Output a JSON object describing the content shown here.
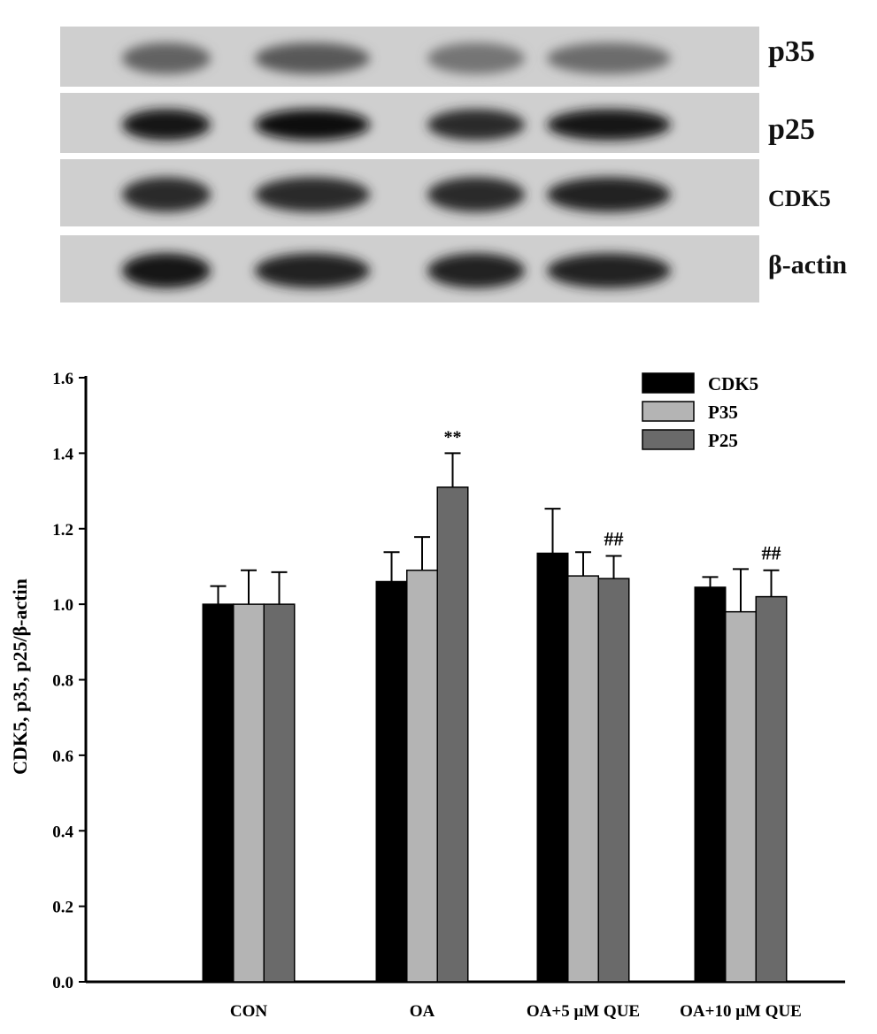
{
  "blot": {
    "rows": [
      {
        "label": "p35",
        "intensity": [
          0.55,
          0.6,
          0.45,
          0.5
        ]
      },
      {
        "label": "p25",
        "intensity": [
          0.95,
          1.0,
          0.85,
          0.95
        ]
      },
      {
        "label": "CDK5",
        "intensity": [
          0.85,
          0.85,
          0.85,
          0.9
        ]
      },
      {
        "label": "β-actin",
        "intensity": [
          0.95,
          0.9,
          0.9,
          0.9
        ]
      }
    ]
  },
  "chart_data": {
    "type": "bar",
    "ylabel": "CDK5, p35, p25/β-actin",
    "xlabel": "",
    "ylim": [
      0,
      1.6
    ],
    "yticks": [
      "0.0",
      "0.2",
      "0.4",
      "0.6",
      "0.8",
      "1.0",
      "1.2",
      "1.4",
      "1.6"
    ],
    "categories": [
      "CON",
      "OA",
      "OA+5 μM QUE",
      "OA+10 μM QUE"
    ],
    "series": [
      {
        "name": "CDK5",
        "color": "#000000",
        "values": [
          1.0,
          1.06,
          1.135,
          1.045
        ],
        "errors": [
          0.048,
          0.078,
          0.118,
          0.027
        ]
      },
      {
        "name": "P35",
        "color": "#b4b4b4",
        "values": [
          1.0,
          1.09,
          1.075,
          0.98
        ],
        "errors": [
          0.09,
          0.088,
          0.063,
          0.113
        ]
      },
      {
        "name": "P25",
        "color": "#6a6a6a",
        "values": [
          1.0,
          1.31,
          1.068,
          1.02
        ],
        "errors": [
          0.085,
          0.09,
          0.06,
          0.07
        ]
      }
    ],
    "annotations": [
      {
        "category": 1,
        "series": 2,
        "text": "**"
      },
      {
        "category": 2,
        "series": 2,
        "text": "##"
      },
      {
        "category": 3,
        "series": 2,
        "text": "##"
      }
    ],
    "legend": "top-right",
    "grid": false
  }
}
